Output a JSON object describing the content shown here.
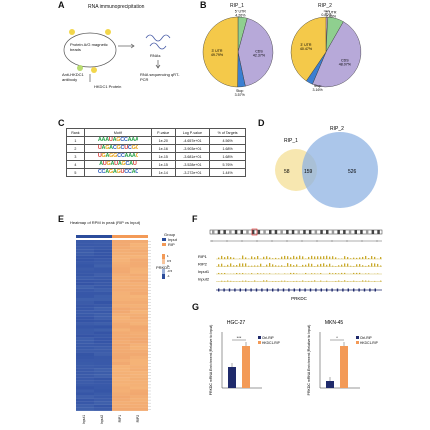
{
  "panels": {
    "a": {
      "label": "A",
      "title": "RNA immunoprecipitation",
      "beads": "Protein A/G magnetic beads",
      "antibody": "Anti-HKDC1 antibody",
      "protein": "HKDC1 Protein",
      "rnas": "RNAs",
      "assay": "RNA sequencing qRT-PCR"
    },
    "b": {
      "label": "B",
      "rip1": {
        "title": "RIP_1",
        "slices": [
          {
            "name": "5' UTR",
            "pct": "4.26%",
            "value": 4.26,
            "color": "#8fcf8f"
          },
          {
            "name": "CDS",
            "pct": "42.37%",
            "value": 42.37,
            "color": "#b7a9d9"
          },
          {
            "name": "Stop",
            "pct": "3.57%",
            "value": 3.57,
            "color": "#3b7fd1"
          },
          {
            "name": "3' UTR",
            "pct": "49.79%",
            "value": 49.79,
            "color": "#f4c94a"
          }
        ]
      },
      "rip2": {
        "title": "RIP_2",
        "slices": [
          {
            "name": "TSS",
            "pct": "0.80%",
            "value": 0.8,
            "color": "#d9b3d9"
          },
          {
            "name": "5' UTR",
            "pct": "7.49%",
            "value": 7.49,
            "color": "#8fcf8f"
          },
          {
            "name": "CDS",
            "pct": "48.07%",
            "value": 48.07,
            "color": "#b7a9d9"
          },
          {
            "name": "Stop",
            "pct": "3.16%",
            "value": 3.16,
            "color": "#3b7fd1"
          },
          {
            "name": "3' UTR",
            "pct": "40.47%",
            "value": 40.47,
            "color": "#f4c94a"
          }
        ]
      }
    },
    "c": {
      "label": "C",
      "headers": [
        "Rank",
        "Motif",
        "P-value",
        "Log P-value",
        "% of Targets"
      ],
      "rows": [
        {
          "rank": "1",
          "motif": "AAAUAGCCAAAG",
          "p": "1e-20",
          "logp": "-4.657e+01",
          "pct": "4.56%"
        },
        {
          "rank": "2",
          "motif": "UAGACGCUCGG",
          "p": "1e-16",
          "logp": "-3.903e+01",
          "pct": "1.68%"
        },
        {
          "rank": "3",
          "motif": "UGAGGCCAAAG",
          "p": "1e-15",
          "logp": "-3.681e+01",
          "pct": "1.68%"
        },
        {
          "rank": "4",
          "motif": "AUGAUAGCAU",
          "p": "1e-15",
          "logp": "-3.528e+01",
          "pct": "5.76%"
        },
        {
          "rank": "5",
          "motif": "CCAGAGUCCAC",
          "p": "1e-14",
          "logp": "-3.272e+01",
          "pct": "1.44%"
        }
      ]
    },
    "d": {
      "label": "D",
      "set1": "RIP_1",
      "set2": "RIP_2",
      "only1": "58",
      "both": "159",
      "only2": "526"
    },
    "e": {
      "label": "E",
      "title": "Heatmap of RPM in peak (RIP vs Input)",
      "legend_title": "Group",
      "legend_items": [
        "Input",
        "RIP"
      ],
      "scale": [
        "1",
        "0.5",
        "0",
        "-0.5",
        "-1"
      ],
      "columns": [
        "Input1",
        "Input2",
        "RIP1",
        "RIP2"
      ],
      "highlight": "PRKDC"
    },
    "f": {
      "label": "F",
      "tracks": [
        "RIP1",
        "RIP2",
        "Input1",
        "Input2"
      ],
      "gene": "PRKDC"
    },
    "g": {
      "label": "G",
      "charts": [
        {
          "title": "HGC-27",
          "ylabel": "PRKDC mRNA Enrichment (Relative to Input)",
          "sig": "***",
          "legend": [
            "Ctrl-RIP",
            "HKDC1-RIP"
          ]
        },
        {
          "title": "MKN-45",
          "ylabel": "PRKDC mRNA Enrichment (Relative to Input)",
          "sig": "*",
          "legend": [
            "Ctrl-RIP",
            "HKDC1-RIP"
          ]
        }
      ]
    }
  },
  "colors": {
    "blue": "#2b4c9b",
    "orange": "#f39a57",
    "navy": "#1f2a6b",
    "venn_yellow": "#f6e3a2",
    "venn_blue": "#8fb3e3"
  },
  "chart_data": [
    {
      "type": "bar",
      "title": "HGC-27",
      "categories": [
        "Ctrl-RIP",
        "HKDC1-RIP"
      ],
      "values": [
        0.3,
        0.6
      ],
      "ylabel": "PRKDC mRNA Enrichment (Relative to Input)"
    },
    {
      "type": "bar",
      "title": "MKN-45",
      "categories": [
        "Ctrl-RIP",
        "HKDC1-RIP"
      ],
      "values": [
        0.1,
        0.6
      ],
      "ylabel": "PRKDC mRNA Enrichment (Relative to Input)"
    }
  ]
}
